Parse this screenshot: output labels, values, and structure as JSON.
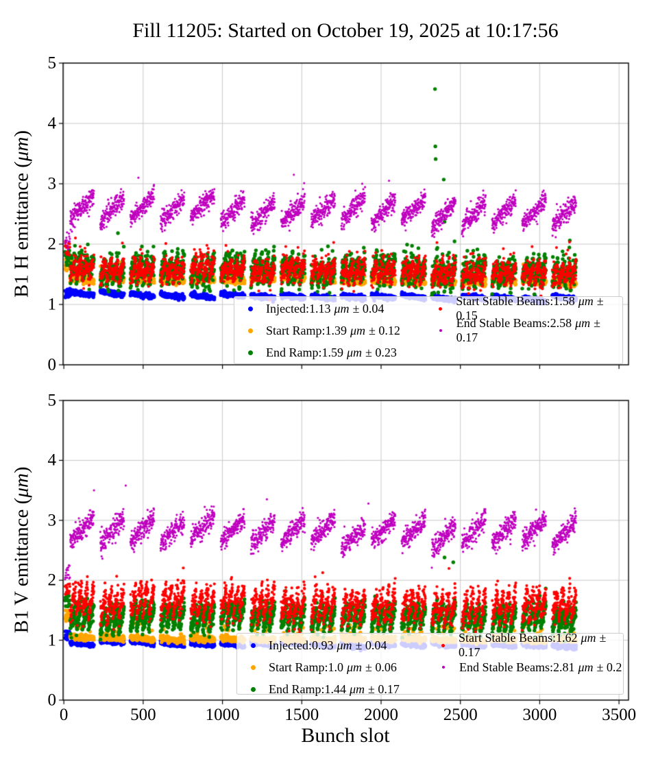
{
  "title": "Fill 11205: Started on October 19, 2025 at 10:17:56",
  "xlabel": "Bunch slot",
  "units_mu": "μm",
  "colors": {
    "injected": "#0000ff",
    "start_ramp": "#ffa500",
    "end_ramp": "#008000",
    "start_stable": "#ff0000",
    "end_stable": "#bf00bf",
    "grid": "#c8c8c8",
    "spine": "#000000",
    "legend_bg": "rgba(255,255,255,0.8)"
  },
  "plots": [
    {
      "ylabel_pre": "B1 H emittance (",
      "ylabel_post": ")"
    },
    {
      "ylabel_pre": "B1 V emittance (",
      "ylabel_post": ")"
    }
  ],
  "chart_data": [
    {
      "type": "scatter",
      "subplot": "B1 H emittance",
      "xlabel": "Bunch slot",
      "ylabel": "B1 H emittance (μm)",
      "xlim": [
        -5,
        3560
      ],
      "ylim": [
        0,
        5
      ],
      "xticks": [
        0,
        500,
        1000,
        1500,
        2000,
        2500,
        3000,
        3500
      ],
      "yticks": [
        0,
        1,
        2,
        3,
        4,
        5
      ],
      "grid": true,
      "legend_position": "lower center-right, two columns, semi-transparent",
      "series": [
        {
          "name": "Injected",
          "mean_um": 1.13,
          "std_um": 0.04,
          "legend_prefix": "Injected:1.13",
          "legend_suffix": "± 0.04",
          "color": "#0000ff",
          "dot_r": 2.7,
          "gen": {
            "type": "band",
            "base": 1.17,
            "drift": -0.08,
            "sigma": 0.02,
            "saw": 0.05,
            "group_jitter": 0.015,
            "spike_p": 0,
            "spike_max": 0,
            "first_stack": [
              1.1,
              1.3
            ],
            "outliers": []
          }
        },
        {
          "name": "Start Ramp",
          "mean_um": 1.39,
          "std_um": 0.12,
          "legend_prefix": "Start Ramp:1.39",
          "legend_suffix": "± 0.12",
          "color": "#ffa500",
          "dot_r": 2.7,
          "gen": {
            "type": "band",
            "base": 1.44,
            "drift": -0.06,
            "sigma": 0.028,
            "saw": 0.03,
            "group_jitter": 0.012,
            "spike_p": 0.025,
            "spike_max": 0.22,
            "first_stack": [
              1.55,
              1.75
            ],
            "outliers": []
          }
        },
        {
          "name": "End Ramp",
          "mean_um": 1.59,
          "std_um": 0.23,
          "legend_prefix": "End Ramp:1.59",
          "legend_suffix": "± 0.23",
          "color": "#008000",
          "dot_r": 2.7,
          "gen": {
            "type": "streak",
            "base": 1.46,
            "drift": -0.08,
            "sigma": 0.1,
            "span": 0.3,
            "group_jitter": 0.03,
            "spike_p": 0.03,
            "spike_max": 0.3,
            "first_stack": [
              1.65,
              1.9
            ],
            "outliers": [
              [
                2340,
                4.57
              ],
              [
                2342,
                3.62
              ],
              [
                2344,
                3.41
              ],
              [
                2395,
                3.07
              ],
              [
                2400,
                2.37
              ]
            ]
          }
        },
        {
          "name": "Start Stable Beams",
          "mean_um": 1.58,
          "std_um": 0.15,
          "legend_prefix": "Start Stable Beams:1.58",
          "legend_suffix": "± 0.15",
          "color": "#ff0000",
          "dot_r": 2.1,
          "gen": {
            "type": "streak",
            "base": 1.48,
            "drift": -0.1,
            "sigma": 0.08,
            "span": 0.26,
            "group_jitter": 0.03,
            "spike_p": 0.05,
            "spike_max": 0.3,
            "first_stack": [
              1.8,
              2.05
            ],
            "outliers": []
          }
        },
        {
          "name": "End Stable Beams",
          "mean_um": 2.58,
          "std_um": 0.17,
          "legend_prefix": "End Stable Beams:2.58",
          "legend_suffix": "± 0.17",
          "color": "#bf00bf",
          "dot_r": 1.6,
          "gen": {
            "type": "group_rise",
            "base": 2.38,
            "drift": -0.06,
            "sigma": 0.08,
            "span": 0.42,
            "group_jitter": 0.05,
            "spike_p": 0,
            "spike_max": 0,
            "first_stack": [
              1.9,
              2.2
            ],
            "outliers": [
              [
                470,
                3.1
              ],
              [
                1450,
                3.15
              ],
              [
                2050,
                3.05
              ]
            ]
          }
        }
      ]
    },
    {
      "type": "scatter",
      "subplot": "B1 V emittance",
      "xlabel": "Bunch slot",
      "ylabel": "B1 V emittance (μm)",
      "xlim": [
        -5,
        3560
      ],
      "ylim": [
        0,
        5
      ],
      "xticks": [
        0,
        500,
        1000,
        1500,
        2000,
        2500,
        3000,
        3500
      ],
      "yticks": [
        0,
        1,
        2,
        3,
        4,
        5
      ],
      "grid": true,
      "legend_position": "lower center-right, two columns, semi-transparent",
      "series": [
        {
          "name": "Injected",
          "mean_um": 0.93,
          "std_um": 0.04,
          "legend_prefix": "Injected:0.93",
          "legend_suffix": "± 0.04",
          "color": "#0000ff",
          "dot_r": 2.7,
          "gen": {
            "type": "band",
            "base": 0.96,
            "drift": -0.06,
            "sigma": 0.018,
            "saw": 0.04,
            "group_jitter": 0.012,
            "spike_p": 0,
            "spike_max": 0,
            "first_stack": [
              1.0,
              1.15
            ],
            "outliers": []
          }
        },
        {
          "name": "Start Ramp",
          "mean_um": 1.0,
          "std_um": 0.06,
          "legend_prefix": "Start Ramp:1.0",
          "legend_suffix": "± 0.06",
          "color": "#ffa500",
          "dot_r": 2.7,
          "gen": {
            "type": "band",
            "base": 1.03,
            "drift": -0.03,
            "sigma": 0.022,
            "saw": 0.03,
            "group_jitter": 0.012,
            "spike_p": 0.05,
            "spike_max": 0.18,
            "first_stack": [
              1.3,
              1.5
            ],
            "outliers": []
          }
        },
        {
          "name": "End Ramp",
          "mean_um": 1.44,
          "std_um": 0.17,
          "legend_prefix": "End Ramp:1.44",
          "legend_suffix": "± 0.17",
          "color": "#008000",
          "dot_r": 2.7,
          "gen": {
            "type": "streak",
            "base": 1.22,
            "drift": -0.06,
            "sigma": 0.07,
            "span": 0.38,
            "group_jitter": 0.03,
            "spike_p": 0.02,
            "spike_max": 0.2,
            "first_stack": [
              1.55,
              1.75
            ],
            "outliers": [
              [
                2400,
                2.38
              ],
              [
                2455,
                2.3
              ]
            ]
          }
        },
        {
          "name": "Start Stable Beams",
          "mean_um": 1.62,
          "std_um": 0.17,
          "legend_prefix": "Start Stable Beams:1.62",
          "legend_suffix": "± 0.17",
          "color": "#ff0000",
          "dot_r": 2.1,
          "gen": {
            "type": "streak",
            "base": 1.42,
            "drift": -0.08,
            "sigma": 0.1,
            "span": 0.45,
            "group_jitter": 0.03,
            "spike_p": 0.04,
            "spike_max": 0.25,
            "first_stack": [
              1.75,
              1.95
            ],
            "outliers": []
          }
        },
        {
          "name": "End Stable Beams",
          "mean_um": 2.81,
          "std_um": 0.2,
          "legend_prefix": "End Stable Beams:2.81",
          "legend_suffix": "± 0.2",
          "color": "#bf00bf",
          "dot_r": 1.6,
          "gen": {
            "type": "group_rise",
            "base": 2.6,
            "drift": 0.0,
            "sigma": 0.09,
            "span": 0.42,
            "group_jitter": 0.05,
            "spike_p": 0,
            "spike_max": 0,
            "first_stack": [
              2.0,
              2.25
            ],
            "outliers": [
              [
                190,
                3.5
              ],
              [
                390,
                3.58
              ],
              [
                1280,
                3.35
              ],
              [
                1920,
                3.28
              ]
            ]
          }
        }
      ]
    }
  ],
  "filling_scheme": {
    "first_stack_slots": {
      "start": 8,
      "count": 16,
      "step": 2
    },
    "groups": 17,
    "group_start": 40,
    "group_period": 190,
    "subtrains_per_group": 4,
    "subtrain_length": 36,
    "subtrain_pitch": 38
  }
}
